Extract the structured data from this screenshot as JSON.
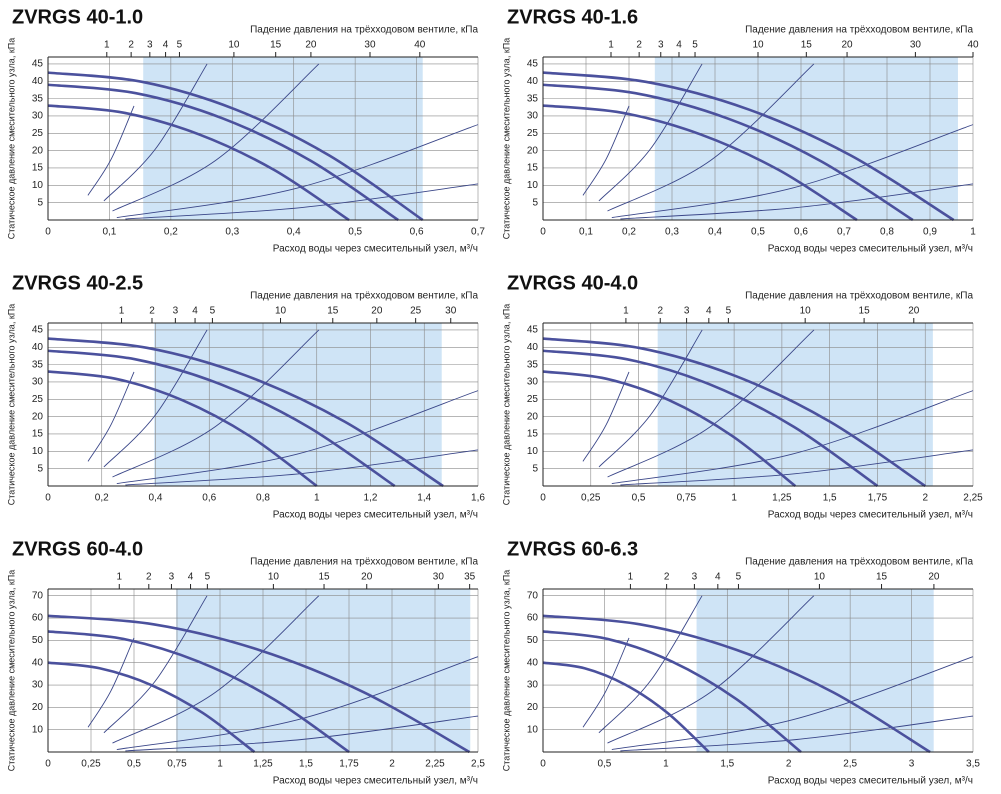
{
  "chart_data": [
    {
      "type": "line",
      "title": "ZVRGS 40-1.0",
      "x2_label": "Падение давления на трёхходовом вентиле, кПа",
      "y_label": "Статическое давление смесительного узла, кПа",
      "x_label": "Расход воды через смесительный узел, м³/ч",
      "xlim": [
        0,
        0.7
      ],
      "xticks": [
        0,
        {
          "value": 0.1,
          "label": "0,1"
        },
        {
          "value": 0.2,
          "label": "0,2"
        },
        {
          "value": 0.3,
          "label": "0,3"
        },
        {
          "value": 0.4,
          "label": "0,4"
        },
        {
          "value": 0.5,
          "label": "0,5"
        },
        {
          "value": 0.6,
          "label": "0,6"
        },
        {
          "value": 0.7,
          "label": "0,7"
        }
      ],
      "ylim": [
        0,
        47
      ],
      "yticks": [
        5,
        10,
        15,
        20,
        25,
        30,
        35,
        40,
        45
      ],
      "x2scale": "sqrt",
      "x2lim": [
        0,
        53.5
      ],
      "x2ticks": [
        1,
        2,
        3,
        4,
        5,
        10,
        15,
        20,
        30,
        40
      ],
      "shaded_range": [
        0.155,
        0.61
      ],
      "shade_color": "#cfe4f6",
      "grid": true,
      "color": "#4b519d",
      "system_color": "#3a4688",
      "series": [
        {
          "x": [
            0,
            0.153,
            0.305,
            0.458,
            0.61
          ],
          "values": [
            42.5,
            39.84,
            31.88,
            18.59,
            0
          ]
        },
        {
          "x": [
            0,
            0.143,
            0.285,
            0.428,
            0.57
          ],
          "values": [
            39,
            36.56,
            29.25,
            17.06,
            0
          ]
        },
        {
          "x": [
            0,
            0.123,
            0.245,
            0.368,
            0.49
          ],
          "values": [
            33,
            30.94,
            24.75,
            14.44,
            0
          ]
        }
      ],
      "system_curves": [
        {
          "x": [
            0.065,
            0.103,
            0.14
          ],
          "values": [
            7.1,
            17.6,
            32.9
          ]
        },
        {
          "x": [
            0.091,
            0.175,
            0.259
          ],
          "values": [
            5.5,
            20.5,
            45
          ]
        },
        {
          "x": [
            0.105,
            0.273,
            0.441
          ],
          "values": [
            2.6,
            17.2,
            45
          ]
        },
        {
          "x": [
            0.112,
            0.406,
            0.7
          ],
          "values": [
            0.7,
            9.2,
            27.5
          ]
        },
        {
          "x": [
            0.126,
            0.413,
            0.7
          ],
          "values": [
            0.3,
            3.6,
            10.4
          ]
        }
      ]
    },
    {
      "type": "line",
      "title": "ZVRGS 40-1.6",
      "x2_label": "Падение давления на трёхходовом вентиле, кПа",
      "y_label": "Статическое давление смесительного узла, кПа",
      "x_label": "Расход воды через смесительный узел, м³/ч",
      "xlim": [
        0,
        1
      ],
      "xticks": [
        0,
        {
          "value": 0.1,
          "label": "0,1"
        },
        {
          "value": 0.2,
          "label": "0,2"
        },
        {
          "value": 0.3,
          "label": "0,3"
        },
        {
          "value": 0.4,
          "label": "0,4"
        },
        {
          "value": 0.5,
          "label": "0,5"
        },
        {
          "value": 0.6,
          "label": "0,6"
        },
        {
          "value": 0.7,
          "label": "0,7"
        },
        {
          "value": 0.8,
          "label": "0,8"
        },
        {
          "value": 0.9,
          "label": "0,9"
        },
        1
      ],
      "ylim": [
        0,
        47
      ],
      "yticks": [
        5,
        10,
        15,
        20,
        25,
        30,
        35,
        40,
        45
      ],
      "x2scale": "sqrt",
      "x2lim": [
        0,
        40
      ],
      "x2ticks": [
        1,
        2,
        3,
        4,
        5,
        10,
        15,
        20,
        30,
        40
      ],
      "shaded_range": [
        0.26,
        0.965
      ],
      "shade_color": "#cfe4f6",
      "grid": true,
      "color": "#4b519d",
      "system_color": "#3a4688",
      "series": [
        {
          "x": [
            0,
            0.239,
            0.478,
            0.716,
            0.955
          ],
          "values": [
            42.5,
            39.84,
            31.88,
            18.59,
            0
          ]
        },
        {
          "x": [
            0,
            0.215,
            0.43,
            0.645,
            0.86
          ],
          "values": [
            39,
            36.56,
            29.25,
            17.06,
            0
          ]
        },
        {
          "x": [
            0,
            0.183,
            0.365,
            0.548,
            0.73
          ],
          "values": [
            33,
            30.94,
            24.75,
            14.44,
            0
          ]
        }
      ],
      "system_curves": [
        {
          "x": [
            0.093,
            0.147,
            0.2
          ],
          "values": [
            7.1,
            17.6,
            32.9
          ]
        },
        {
          "x": [
            0.13,
            0.25,
            0.37
          ],
          "values": [
            5.5,
            20.5,
            45
          ]
        },
        {
          "x": [
            0.15,
            0.39,
            0.63
          ],
          "values": [
            2.6,
            17.2,
            45
          ]
        },
        {
          "x": [
            0.16,
            0.58,
            1
          ],
          "values": [
            0.7,
            9.2,
            27.5
          ]
        },
        {
          "x": [
            0.18,
            0.59,
            1
          ],
          "values": [
            0.3,
            3.6,
            10.4
          ]
        }
      ]
    },
    {
      "type": "line",
      "title": "ZVRGS 40-2.5",
      "x2_label": "Падение давления на трёхходовом вентиле, кПа",
      "y_label": "Статическое давление смесительного узла, кПа",
      "x_label": "Расход воды через смесительный узел, м³/ч",
      "xlim": [
        0,
        1.6
      ],
      "xticks": [
        0,
        {
          "value": 0.2,
          "label": "0,2"
        },
        {
          "value": 0.4,
          "label": "0,4"
        },
        {
          "value": 0.6,
          "label": "0,6"
        },
        {
          "value": 0.8,
          "label": "0,8"
        },
        1,
        {
          "value": 1.2,
          "label": "1,2"
        },
        {
          "value": 1.4,
          "label": "1,4"
        },
        {
          "value": 1.6,
          "label": "1,6"
        }
      ],
      "ylim": [
        0,
        47
      ],
      "yticks": [
        5,
        10,
        15,
        20,
        25,
        30,
        35,
        40,
        45
      ],
      "x2scale": "sqrt",
      "x2lim": [
        0,
        34.2
      ],
      "x2ticks": [
        1,
        2,
        3,
        4,
        5,
        10,
        15,
        20,
        25,
        30
      ],
      "shaded_range": [
        0.395,
        1.465
      ],
      "shade_color": "#cfe4f6",
      "grid": true,
      "color": "#4b519d",
      "system_color": "#3a4688",
      "series": [
        {
          "x": [
            0,
            0.368,
            0.735,
            1.103,
            1.47
          ],
          "values": [
            42.5,
            39.84,
            31.88,
            18.59,
            0
          ]
        },
        {
          "x": [
            0,
            0.323,
            0.645,
            0.968,
            1.29
          ],
          "values": [
            39,
            36.56,
            29.25,
            17.06,
            0
          ]
        },
        {
          "x": [
            0,
            0.25,
            0.5,
            0.75,
            1.0
          ],
          "values": [
            33,
            30.94,
            24.75,
            14.44,
            0
          ]
        }
      ],
      "system_curves": [
        {
          "x": [
            0.149,
            0.234,
            0.32
          ],
          "values": [
            7.1,
            17.6,
            32.9
          ]
        },
        {
          "x": [
            0.208,
            0.4,
            0.592
          ],
          "values": [
            5.5,
            20.5,
            45
          ]
        },
        {
          "x": [
            0.24,
            0.624,
            1.008
          ],
          "values": [
            2.6,
            17.2,
            45
          ]
        },
        {
          "x": [
            0.256,
            0.928,
            1.6
          ],
          "values": [
            0.7,
            9.2,
            27.5
          ]
        },
        {
          "x": [
            0.288,
            0.944,
            1.6
          ],
          "values": [
            0.3,
            3.6,
            10.4
          ]
        }
      ]
    },
    {
      "type": "line",
      "title": "ZVRGS 40-4.0",
      "x2_label": "Падение давления на трёхходовом вентиле, кПа",
      "y_label": "Статическое давление смесительного узла, кПа",
      "x_label": "Расход воды через смесительный узел, м³/ч",
      "xlim": [
        0,
        2.25
      ],
      "xticks": [
        0,
        {
          "value": 0.25,
          "label": "0,25"
        },
        {
          "value": 0.5,
          "label": "0,5"
        },
        {
          "value": 0.75,
          "label": "0,75"
        },
        1,
        {
          "value": 1.25,
          "label": "1,25"
        },
        {
          "value": 1.5,
          "label": "1,5"
        },
        {
          "value": 1.75,
          "label": "1,75"
        },
        2,
        {
          "value": 2.25,
          "label": "2,25"
        }
      ],
      "ylim": [
        0,
        47
      ],
      "yticks": [
        5,
        10,
        15,
        20,
        25,
        30,
        35,
        40,
        45
      ],
      "x2scale": "sqrt",
      "x2lim": [
        0,
        26.9
      ],
      "x2ticks": [
        1,
        2,
        3,
        4,
        5,
        10,
        15,
        20
      ],
      "shaded_range": [
        0.6,
        2.04
      ],
      "shade_color": "#cfe4f6",
      "grid": true,
      "color": "#4b519d",
      "system_color": "#3a4688",
      "series": [
        {
          "x": [
            0,
            0.5,
            1.0,
            1.5,
            2.0
          ],
          "values": [
            42.5,
            39.84,
            31.88,
            18.59,
            0
          ]
        },
        {
          "x": [
            0,
            0.438,
            0.875,
            1.313,
            1.75
          ],
          "values": [
            39,
            36.56,
            29.25,
            17.06,
            0
          ]
        },
        {
          "x": [
            0,
            0.33,
            0.66,
            0.99,
            1.32
          ],
          "values": [
            33,
            30.94,
            24.75,
            14.44,
            0
          ]
        }
      ],
      "system_curves": [
        {
          "x": [
            0.209,
            0.33,
            0.45
          ],
          "values": [
            7.1,
            17.6,
            32.9
          ]
        },
        {
          "x": [
            0.293,
            0.563,
            0.833
          ],
          "values": [
            5.5,
            20.5,
            45
          ]
        },
        {
          "x": [
            0.338,
            0.878,
            1.418
          ],
          "values": [
            2.6,
            17.2,
            45
          ]
        },
        {
          "x": [
            0.36,
            1.305,
            2.25
          ],
          "values": [
            0.7,
            9.2,
            27.5
          ]
        },
        {
          "x": [
            0.405,
            1.328,
            2.25
          ],
          "values": [
            0.3,
            3.6,
            10.4
          ]
        }
      ]
    },
    {
      "type": "line",
      "title": "ZVRGS 60-4.0",
      "x2_label": "Падение давления на трёхходовом вентиле, кПа",
      "y_label": "Статическое давление смесительного узла, кПа",
      "x_label": "Расход воды через смесительный узел, м³/ч",
      "xlim": [
        0,
        2.5
      ],
      "xticks": [
        0,
        {
          "value": 0.25,
          "label": "0,25"
        },
        {
          "value": 0.5,
          "label": "0,5"
        },
        {
          "value": 0.75,
          "label": "0,75"
        },
        1,
        {
          "value": 1.25,
          "label": "1,25"
        },
        {
          "value": 1.5,
          "label": "1,5"
        },
        {
          "value": 1.75,
          "label": "1,75"
        },
        2,
        {
          "value": 2.25,
          "label": "2,25"
        },
        {
          "value": 2.5,
          "label": "2,5"
        }
      ],
      "ylim": [
        0,
        73
      ],
      "yticks": [
        10,
        20,
        30,
        40,
        50,
        60,
        70
      ],
      "x2scale": "sqrt",
      "x2lim": [
        0,
        36.4
      ],
      "x2ticks": [
        1,
        2,
        3,
        4,
        5,
        10,
        15,
        20,
        30,
        35
      ],
      "shaded_range": [
        0.745,
        2.455
      ],
      "shade_color": "#cfe4f6",
      "grid": true,
      "color": "#4b519d",
      "system_color": "#3a4688",
      "series": [
        {
          "x": [
            0,
            0.613,
            1.225,
            1.838,
            2.45
          ],
          "values": [
            61,
            57.19,
            45.75,
            26.69,
            0
          ]
        },
        {
          "x": [
            0,
            0.438,
            0.875,
            1.313,
            1.75
          ],
          "values": [
            54,
            50.63,
            40.5,
            23.63,
            0
          ]
        },
        {
          "x": [
            0,
            0.3,
            0.6,
            0.9,
            1.2
          ],
          "values": [
            40,
            37.5,
            30,
            17.5,
            0
          ]
        }
      ],
      "system_curves": [
        {
          "x": [
            0.233,
            0.366,
            0.5
          ],
          "values": [
            11.1,
            27.4,
            51.1
          ]
        },
        {
          "x": [
            0.325,
            0.625,
            0.925
          ],
          "values": [
            8.6,
            31.9,
            70
          ]
        },
        {
          "x": [
            0.375,
            0.975,
            1.575
          ],
          "values": [
            4,
            26.8,
            70
          ]
        },
        {
          "x": [
            0.4,
            1.45,
            2.5
          ],
          "values": [
            1.1,
            14.4,
            42.7
          ]
        },
        {
          "x": [
            0.45,
            1.475,
            2.5
          ],
          "values": [
            0.5,
            5.6,
            16.1
          ]
        }
      ]
    },
    {
      "type": "line",
      "title": "ZVRGS 60-6.3",
      "x2_label": "Падение давления на трёхходовом вентиле, кПа",
      "y_label": "Статическое давление смесительного узла, кПа",
      "x_label": "Расход воды через смесительный узел, м³/ч",
      "xlim": [
        0,
        3.5
      ],
      "xticks": [
        0,
        {
          "value": 0.5,
          "label": "0,5"
        },
        1,
        {
          "value": 1.5,
          "label": "1,5"
        },
        2,
        {
          "value": 2.5,
          "label": "2,5"
        },
        3,
        {
          "value": 3.5,
          "label": "3,5"
        }
      ],
      "ylim": [
        0,
        73
      ],
      "yticks": [
        10,
        20,
        30,
        40,
        50,
        60,
        70
      ],
      "x2scale": "sqrt",
      "x2lim": [
        0,
        24.2
      ],
      "x2ticks": [
        1,
        2,
        3,
        4,
        5,
        10,
        15,
        20
      ],
      "shaded_range": [
        1.25,
        3.18
      ],
      "shade_color": "#cfe4f6",
      "grid": true,
      "color": "#4b519d",
      "system_color": "#3a4688",
      "series": [
        {
          "x": [
            0,
            0.788,
            1.575,
            2.363,
            3.15
          ],
          "values": [
            61,
            57.19,
            45.75,
            26.69,
            0
          ]
        },
        {
          "x": [
            0,
            0.525,
            1.05,
            1.575,
            2.1
          ],
          "values": [
            54,
            50.63,
            40.5,
            23.63,
            0
          ]
        },
        {
          "x": [
            0,
            0.338,
            0.675,
            1.013,
            1.35
          ],
          "values": [
            40,
            37.5,
            30,
            17.5,
            0
          ]
        }
      ],
      "system_curves": [
        {
          "x": [
            0.326,
            0.513,
            0.7
          ],
          "values": [
            11.1,
            27.4,
            51.1
          ]
        },
        {
          "x": [
            0.455,
            0.875,
            1.295
          ],
          "values": [
            8.6,
            31.9,
            70
          ]
        },
        {
          "x": [
            0.525,
            1.365,
            2.205
          ],
          "values": [
            4,
            26.8,
            70
          ]
        },
        {
          "x": [
            0.56,
            2.03,
            3.5
          ],
          "values": [
            1.1,
            14.4,
            42.7
          ]
        },
        {
          "x": [
            0.63,
            2.065,
            3.5
          ],
          "values": [
            0.5,
            5.6,
            16.1
          ]
        }
      ]
    }
  ]
}
